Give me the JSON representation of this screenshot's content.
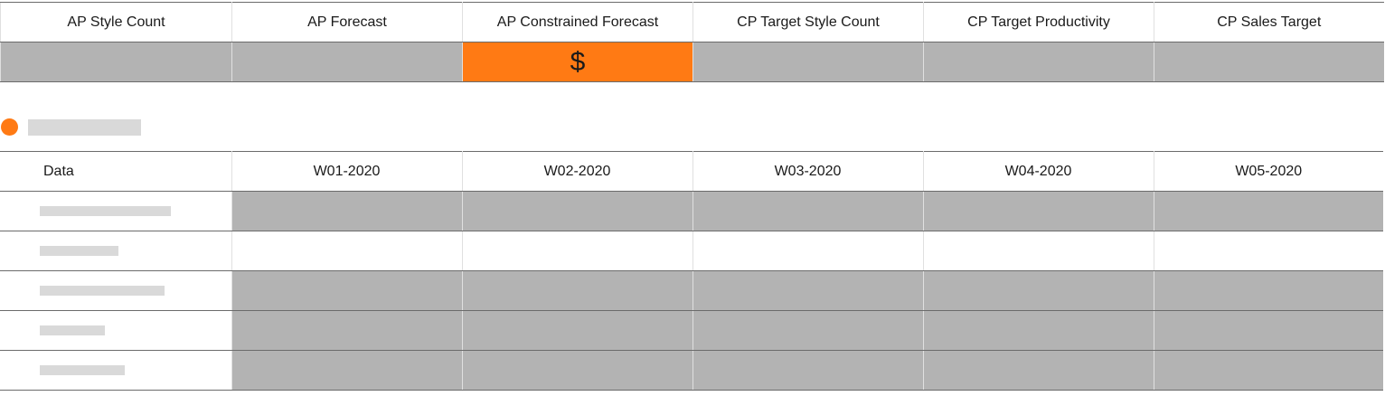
{
  "summary": {
    "headers": [
      "AP Style Count",
      "AP Forecast",
      "AP Constrained Forecast",
      "CP Target Style Count",
      "CP Target Productivity",
      "CP Sales Target"
    ],
    "highlight_symbol": "$"
  },
  "weekly": {
    "label_header": "Data",
    "weeks": [
      "W01-2020",
      "W02-2020",
      "W03-2020",
      "W04-2020",
      "W05-2020"
    ]
  },
  "colors": {
    "accent": "#ff7a14",
    "cell_gray": "#b3b3b3",
    "placeholder": "#d9d9d9"
  }
}
